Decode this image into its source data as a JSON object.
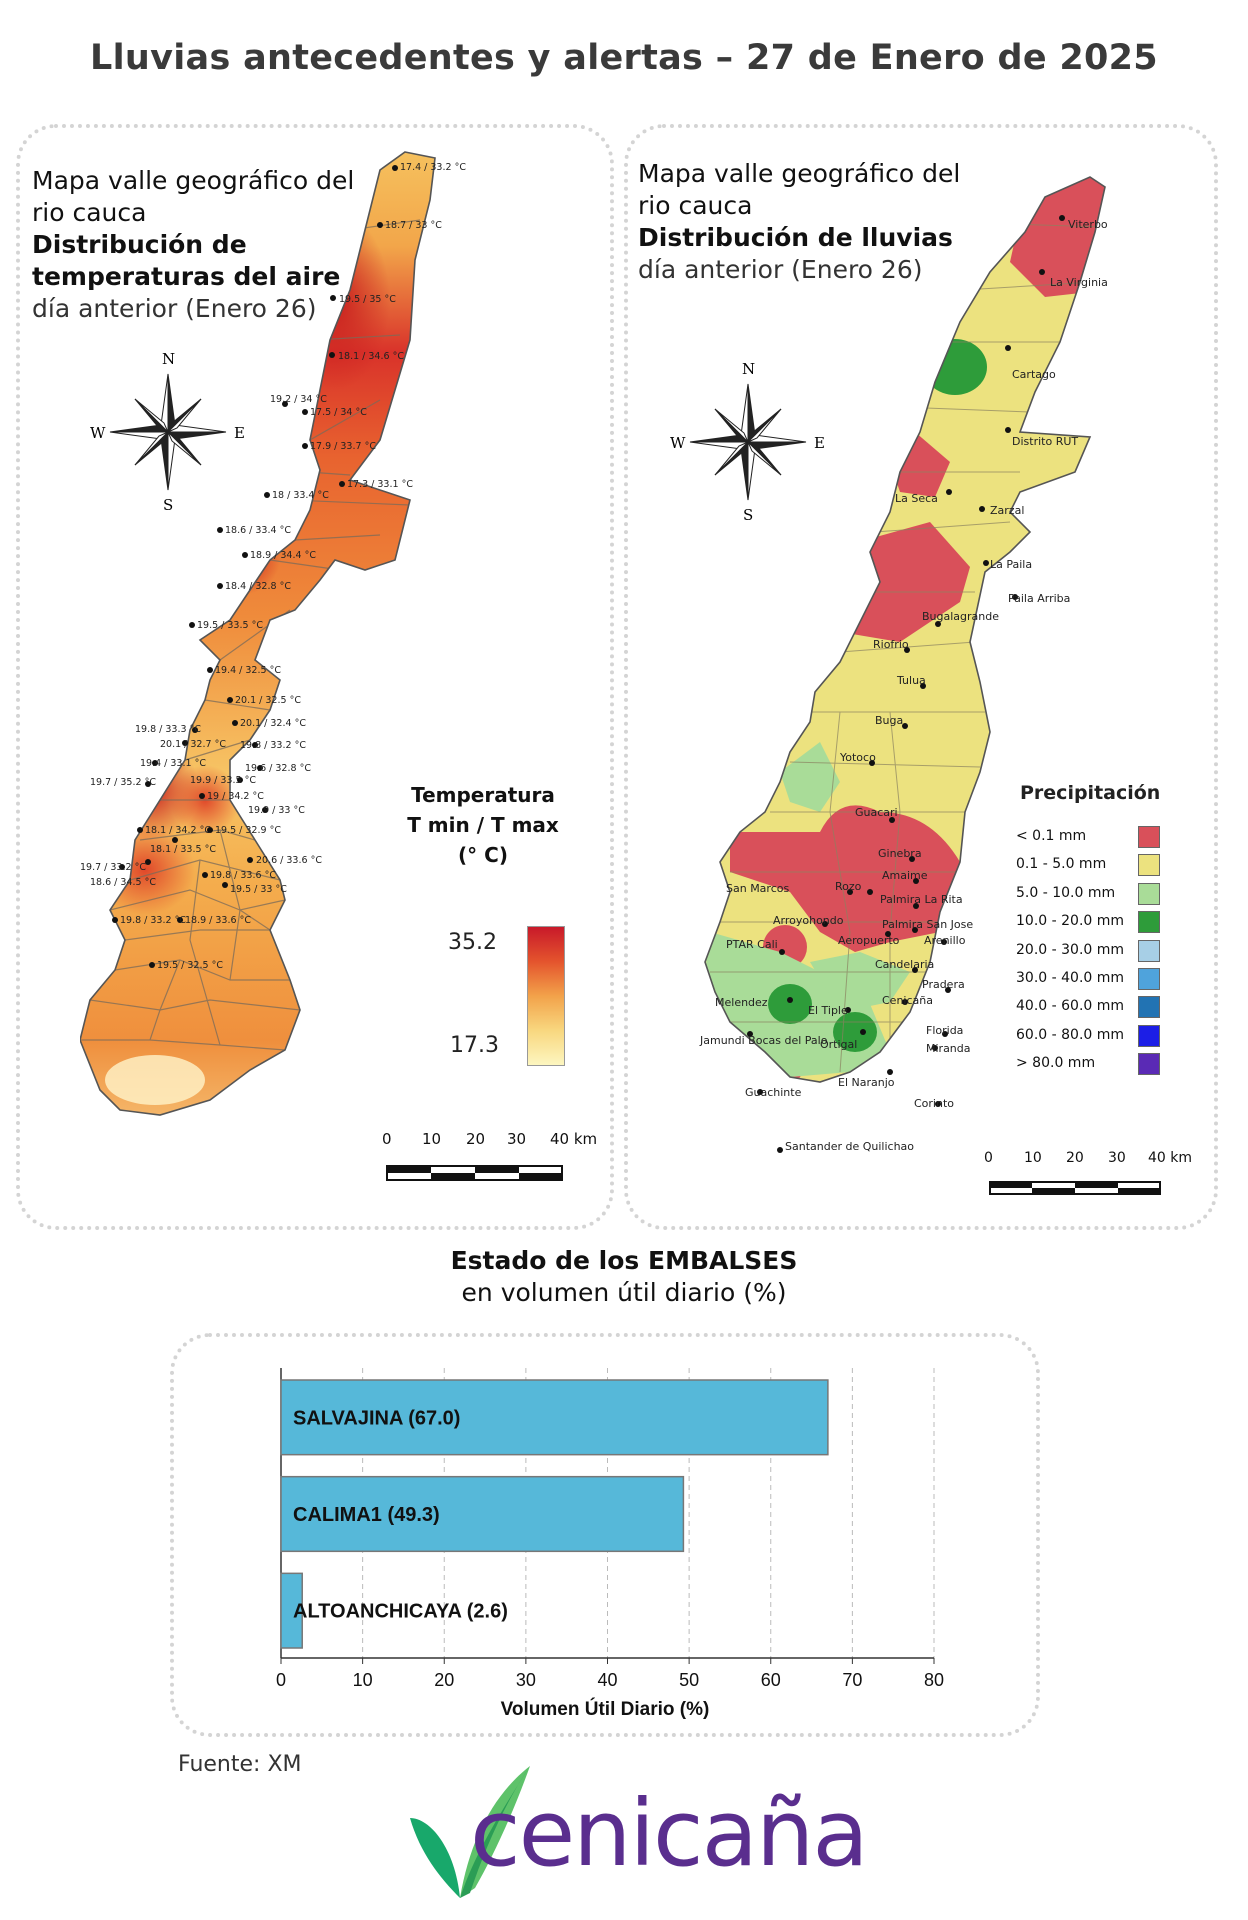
{
  "title": "Lluvias antecedentes y alertas – 27 de Enero de 2025",
  "temperature_map": {
    "title_line1": "Mapa valle geográfico del",
    "title_line2": "rio cauca",
    "title_line3": "Distribución de",
    "title_line4": "temperaturas del aire",
    "subtitle": "día anterior (Enero 26)",
    "legend_title_1": "Temperatura",
    "legend_title_2": "T min / T max",
    "legend_title_3": "(° C)",
    "legend_max": "35.2",
    "legend_min": "17.3",
    "compass": {
      "n": "N",
      "s": "S",
      "e": "E",
      "w": "W"
    },
    "scale_labels": [
      "0",
      "10",
      "20",
      "30",
      "40 km"
    ],
    "stations": [
      "17.4 / 33.2 °C",
      "18.7 / 33 °C",
      "19.5 / 35 °C",
      "18.1 / 34.6 °C",
      "19.2 / 34 °C",
      "17.5 / 34 °C",
      "17.9 / 33.7 °C",
      "17.3 / 33.1 °C",
      "18 / 33.4 °C",
      "18.6 / 33.4 °C",
      "18.9 / 34.4 °C",
      "18.4 / 32.8 °C",
      "19.5 / 33.5 °C",
      "19.4 / 32.5 °C",
      "20.1 / 32.5 °C",
      "20.1 / 32.4 °C",
      "19.8 / 33.3 °C",
      "20.1 / 32.7 °C",
      "19.8 / 33.2 °C",
      "19.4 / 33.1 °C",
      "19.6 / 32.8 °C",
      "19.7 / 35.2 °C",
      "19.9 / 33.5 °C",
      "19 / 34.2 °C",
      "19.9 / 33 °C",
      "18.1 / 34.2 °C",
      "19.5 / 32.9 °C",
      "18.1 / 33.5 °C",
      "20.6 / 33.6 °C",
      "19.7 / 33.2 °C",
      "19.8 / 33.6 °C",
      "18.6 / 34.5 °C",
      "19.5 / 33 °C",
      "19.8 / 33.2 °C",
      "18.9 / 33.6 °C",
      "19.5 / 32.5 °C"
    ]
  },
  "rain_map": {
    "title_line1": "Mapa valle geográfico del",
    "title_line2": "rio cauca",
    "title_line3": "Distribución de lluvias",
    "subtitle": "día anterior (Enero 26)",
    "legend_title": "Precipitación",
    "legend": [
      {
        "label": "< 0.1 mm",
        "color": "#d9505a"
      },
      {
        "label": "0.1 - 5.0 mm",
        "color": "#ece27f"
      },
      {
        "label": "5.0 - 10.0 mm",
        "color": "#a9dc98"
      },
      {
        "label": "10.0 - 20.0 mm",
        "color": "#2e9c3a"
      },
      {
        "label": "20.0 - 30.0 mm",
        "color": "#a7cfe6"
      },
      {
        "label": "30.0 - 40.0 mm",
        "color": "#4fa3dc"
      },
      {
        "label": "40.0 - 60.0 mm",
        "color": "#2273b3"
      },
      {
        "label": "60.0 - 80.0 mm",
        "color": "#1c1ee6"
      },
      {
        "label": "> 80.0 mm",
        "color": "#5a2ab5"
      }
    ],
    "compass": {
      "n": "N",
      "s": "S",
      "e": "E",
      "w": "W"
    },
    "scale_labels": [
      "0",
      "10",
      "20",
      "30",
      "40 km"
    ],
    "places": [
      "Viterbo",
      "La Virginia",
      "Cartago",
      "Distrito RUT",
      "La Seca",
      "Zarzal",
      "La Paila",
      "Paila Arriba",
      "Bugalagrande",
      "Riofrio",
      "Tulua",
      "Buga",
      "Yotoco",
      "Guacari",
      "Ginebra",
      "Amaime",
      "San Marcos",
      "Rozo",
      "Palmira La Rita",
      "Arroyohondo",
      "Palmira San Jose",
      "Aeropuerto",
      "Arenillo",
      "PTAR Cali",
      "Candelaria",
      "Pradera",
      "Melendez",
      "El Tiple",
      "Cenicaña",
      "Florida",
      "Jamundi Bocas del Palo",
      "Ortigal",
      "Miranda",
      "Guachinte",
      "El Naranjo",
      "Corinto",
      "Santander de Quilichao"
    ]
  },
  "reservoirs": {
    "title_bold": "Estado de los EMBALSES",
    "title_sub": "en volumen útil diario (%)",
    "source": "Fuente: XM",
    "logo_text": "cenicaña"
  },
  "chart_data": {
    "type": "bar",
    "orientation": "horizontal",
    "categories": [
      "SALVAJINA (67.0)",
      "CALIMA1 (49.3)",
      "ALTOANCHICAYA (2.6)"
    ],
    "values": [
      67.0,
      49.3,
      2.6
    ],
    "xlabel": "Volumen Útil Diario (%)",
    "xlim": [
      0,
      80
    ],
    "xticks": [
      "0",
      "10",
      "20",
      "30",
      "40",
      "50",
      "60",
      "70",
      "80"
    ],
    "grid": true,
    "bar_color": "#56b8d9"
  }
}
